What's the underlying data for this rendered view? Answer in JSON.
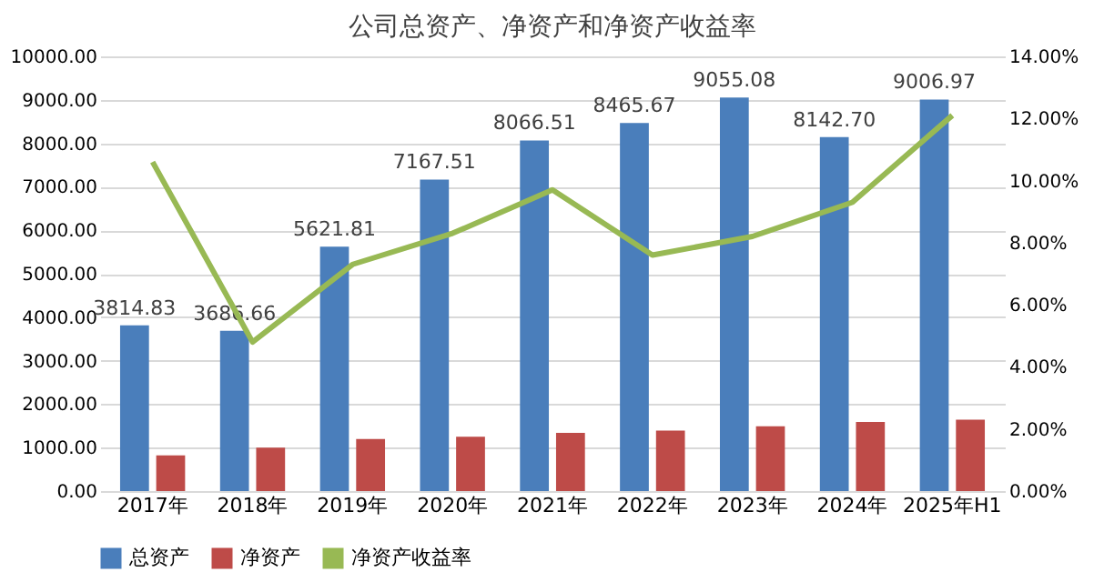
{
  "chart_data": {
    "type": "bar",
    "title": "公司总资产、净资产和净资产收益率",
    "categories": [
      "2017年",
      "2018年",
      "2019年",
      "2020年",
      "2021年",
      "2022年",
      "2023年",
      "2024年",
      "2025年H1"
    ],
    "series": [
      {
        "name": "总资产",
        "color": "#4a7ebb",
        "values": [
          3814.83,
          3686.66,
          5621.81,
          7167.51,
          8066.51,
          8465.67,
          9055.08,
          8142.7,
          9006.97
        ],
        "value_labels": [
          "3814.83",
          "3686.66",
          "5621.81",
          "7167.51",
          "8066.51",
          "8465.67",
          "9055.08",
          "8142.70",
          "9006.97"
        ]
      },
      {
        "name": "净资产",
        "color": "#be4b48",
        "values": [
          820,
          1000,
          1200,
          1250,
          1340,
          1390,
          1490,
          1590,
          1640
        ]
      },
      {
        "name": "净资产收益率",
        "type": "line",
        "axis": "y2",
        "color": "#98b954",
        "values": [
          10.6,
          4.8,
          7.3,
          8.3,
          9.7,
          7.6,
          8.2,
          9.3,
          12.1
        ]
      }
    ],
    "ylim": [
      0,
      10000
    ],
    "yticks": [
      {
        "value": 0,
        "label": "0.00"
      },
      {
        "value": 1000,
        "label": "1000.00"
      },
      {
        "value": 2000,
        "label": "2000.00"
      },
      {
        "value": 3000,
        "label": "3000.00"
      },
      {
        "value": 4000,
        "label": "4000.00"
      },
      {
        "value": 5000,
        "label": "5000.00"
      },
      {
        "value": 6000,
        "label": "6000.00"
      },
      {
        "value": 7000,
        "label": "7000.00"
      },
      {
        "value": 8000,
        "label": "8000.00"
      },
      {
        "value": 9000,
        "label": "9000.00"
      },
      {
        "value": 10000,
        "label": "10000.00"
      }
    ],
    "y2lim": [
      0,
      14
    ],
    "y2ticks": [
      {
        "value": 0,
        "label": "0.00%"
      },
      {
        "value": 2,
        "label": "2.00%"
      },
      {
        "value": 4,
        "label": "4.00%"
      },
      {
        "value": 6,
        "label": "6.00%"
      },
      {
        "value": 8,
        "label": "8.00%"
      },
      {
        "value": 10,
        "label": "10.00%"
      },
      {
        "value": 12,
        "label": "12.00%"
      },
      {
        "value": 14,
        "label": "14.00%"
      }
    ],
    "grid": "y",
    "legend": "bottom",
    "marker": "none",
    "line_style": "solid"
  }
}
